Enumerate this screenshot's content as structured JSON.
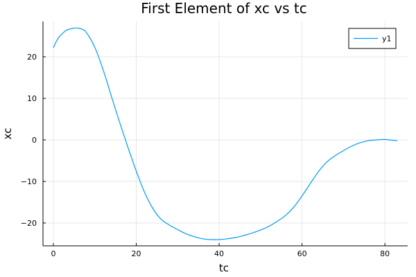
{
  "chart_data": {
    "type": "line",
    "title": "First Element of xc vs tc",
    "xlabel": "tc",
    "ylabel": "xc",
    "xlim": [
      -2.5,
      85.5
    ],
    "ylim": [
      -25.5,
      28.5
    ],
    "xticks": [
      0,
      20,
      40,
      60,
      80
    ],
    "yticks": [
      -20,
      -10,
      0,
      10,
      20
    ],
    "xtick_labels": [
      "0",
      "20",
      "40",
      "60",
      "80"
    ],
    "ytick_labels": [
      "−20",
      "−10",
      "0",
      "10",
      "20"
    ],
    "grid": true,
    "legend_position": "top-right",
    "series": [
      {
        "name": "y1",
        "color": "#009af9",
        "x": [
          0,
          1,
          2,
          3,
          4,
          5,
          6,
          7,
          8,
          10,
          12,
          14,
          16,
          18,
          20,
          22,
          24,
          26,
          28,
          30,
          32,
          34,
          36,
          38,
          40,
          42,
          44,
          46,
          48,
          50,
          52,
          54,
          56,
          58,
          60,
          62,
          64,
          66,
          68,
          70,
          72,
          74,
          76,
          78,
          80,
          81,
          82,
          83
        ],
        "y": [
          22.2,
          24.2,
          25.4,
          26.3,
          26.7,
          26.9,
          26.9,
          26.6,
          25.8,
          22.3,
          16.9,
          10.5,
          4.2,
          -1.8,
          -7.5,
          -12.6,
          -16.5,
          -19.1,
          -20.5,
          -21.6,
          -22.6,
          -23.3,
          -23.8,
          -24.0,
          -24.0,
          -23.8,
          -23.5,
          -23.0,
          -22.4,
          -21.7,
          -20.8,
          -19.6,
          -18.2,
          -16.2,
          -13.5,
          -10.5,
          -7.6,
          -5.3,
          -3.8,
          -2.6,
          -1.5,
          -0.7,
          -0.2,
          0.0,
          0.1,
          0.0,
          -0.1,
          -0.2
        ]
      }
    ]
  }
}
